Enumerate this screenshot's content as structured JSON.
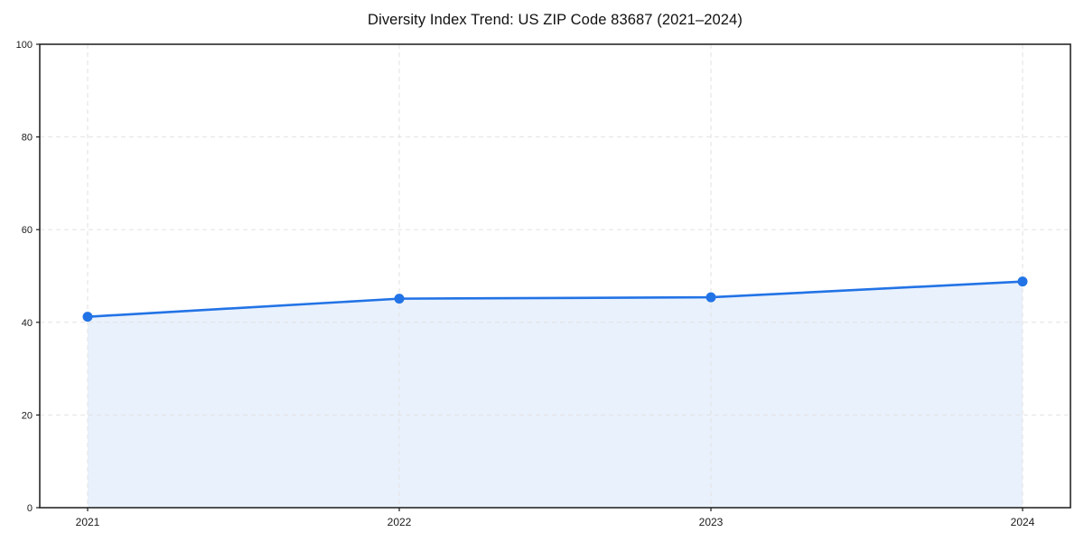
{
  "chart_data": {
    "type": "area",
    "title": "Diversity Index Trend: US ZIP Code 83687 (2021–2024)",
    "x": [
      "2021",
      "2022",
      "2023",
      "2024"
    ],
    "values": [
      41.2,
      45.1,
      45.4,
      48.8
    ],
    "xlabel": "",
    "ylabel": "",
    "ylim": [
      0,
      100
    ],
    "yticks": [
      0,
      20,
      40,
      60,
      80,
      100
    ],
    "grid": "dashed",
    "legend": "none",
    "colors": {
      "line": "#2273e6",
      "marker": "#2273e6",
      "fill": "#e9f1fc",
      "grid": "#e2e2e2",
      "axis": "#1a1a1a",
      "title": "#111111",
      "background": "#ffffff"
    }
  }
}
